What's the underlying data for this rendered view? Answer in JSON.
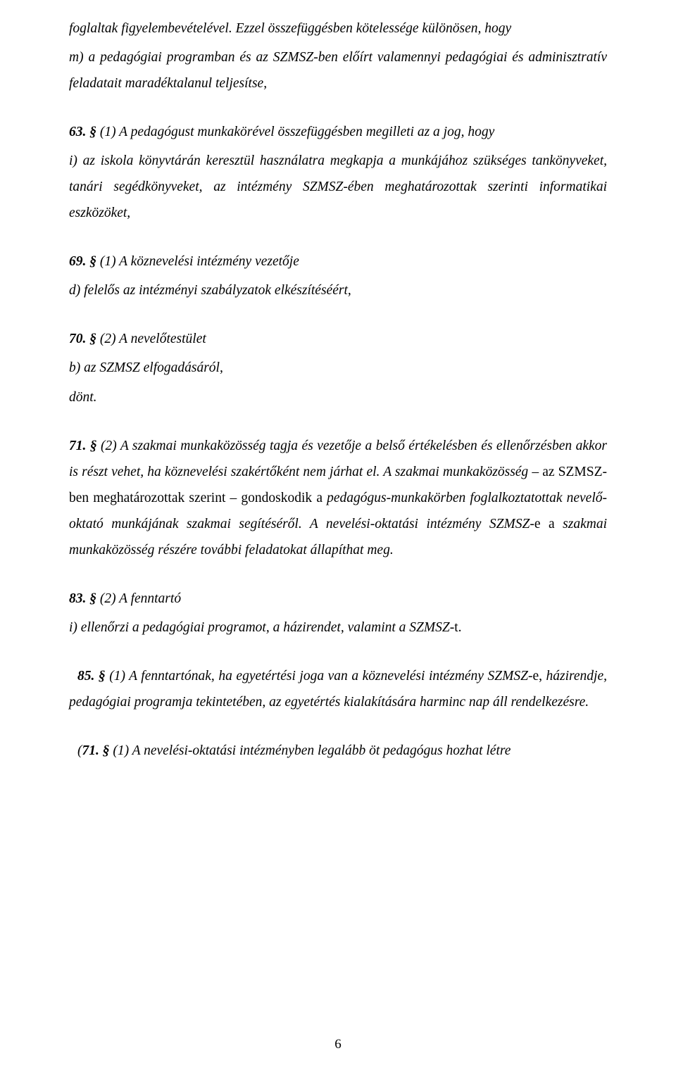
{
  "paragraphs": {
    "p1_part1": "foglaltak figyelembevételével. Ezzel összefüggésben kötelessége különösen, hogy",
    "p1_m": "m) a pedagógiai programban és az SZMSZ-ben előírt valamennyi pedagógiai és adminisztratív feladatait maradéktalanul teljesítse,",
    "p2_title": "63. § ",
    "p2_body": "(1) A pedagógust munkakörével összefüggésben megilleti az a jog, hogy",
    "p2_i": "i) az iskola könyvtárán keresztül használatra megkapja a munkájához szükséges tankönyveket, tanári segédkönyveket, az intézmény SZMSZ-ében meghatározottak szerinti informatikai eszközöket,",
    "p3_title": "69. § ",
    "p3_body": "(1) A köznevelési intézmény vezetője",
    "p3_d": "d) felelős az intézményi szabályzatok elkészítéséért,",
    "p4_title": "70. § ",
    "p4_body": "(2) A nevelőtestület",
    "p4_b": "b) az SZMSZ elfogadásáról,",
    "p4_dont": "dönt.",
    "p5_title": "71. § ",
    "p5_body1": "(2) A szakmai munkaközösség tagja és vezetője a belső értékelésben és ellenőrzésben akkor is részt vehet, ha köznevelési szakértőként nem járhat el. A szakmai munkaközösség ",
    "p5_upright1": "– az SZMSZ-ben meghatározottak szerint – gondoskodik a ",
    "p5_body2": "pedagógus-munkakörben foglalkoztatottak nevelő-oktató munkájának szakmai segítéséről. A nevelési-oktatási intézmény SZMSZ-",
    "p5_upright2": "e a ",
    "p5_body3": "szakmai munkaközösség részére további feladatokat állapíthat meg.",
    "p6_title": "83. § ",
    "p6_body": "(2) A fenntartó",
    "p6_i": "i) ellenőrzi a pedagógiai programot, a házirendet, valamint a SZMSZ-",
    "p6_i_up": "t.",
    "p7_title": "85. § ",
    "p7_body": "(1) A fenntartónak, ha egyetértési joga van a köznevelési intézmény SZMSZ-",
    "p7_up": "e, ",
    "p7_body2": "házirendje, pedagógiai programja tekintetében, az egyetértés kialakítására harminc nap áll rendelkezésre.",
    "p8_open": "(",
    "p8_title": "71. § ",
    "p8_body": "(1) A nevelési-oktatási intézményben legalább öt pedagógus hozhat létre"
  },
  "pageNumber": "6"
}
